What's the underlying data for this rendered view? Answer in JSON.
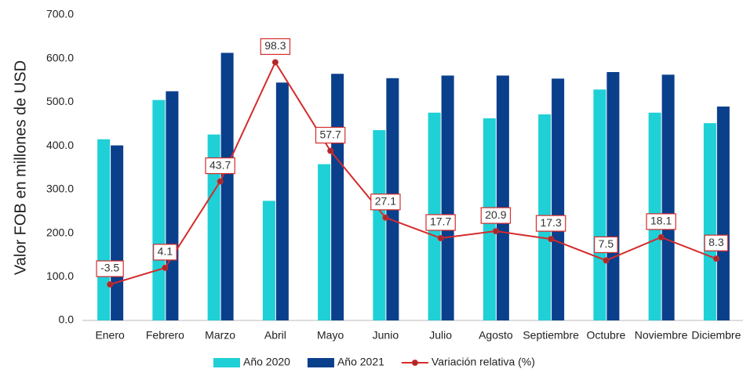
{
  "chart_data": {
    "type": "bar_line",
    "y_axis_label": "Valor FOB en millones de USD",
    "categories": [
      "Enero",
      "Febrero",
      "Marzo",
      "Abril",
      "Mayo",
      "Junio",
      "Julio",
      "Agosto",
      "Septiembre",
      "Octubre",
      "Noviembre",
      "Diciembre"
    ],
    "series": [
      {
        "name": "Año 2020",
        "color": "#1fd0d6",
        "type": "bar",
        "values": [
          415,
          505,
          426,
          274,
          358,
          436,
          476,
          463,
          472,
          529,
          476,
          452
        ]
      },
      {
        "name": "Año 2021",
        "color": "#0a3f8c",
        "type": "bar",
        "values": [
          401,
          525,
          613,
          545,
          565,
          555,
          561,
          561,
          554,
          569,
          563,
          490
        ]
      },
      {
        "name": "Variación relativa (%)",
        "color": "#d62b2b",
        "type": "line",
        "axis": "y2",
        "values": [
          -3.5,
          4.1,
          43.7,
          98.3,
          57.7,
          27.1,
          17.7,
          20.9,
          17.3,
          7.5,
          18.1,
          8.3
        ]
      }
    ],
    "ylim": [
      0,
      700
    ],
    "yticks": [
      {
        "value": 0,
        "label": "0.0"
      },
      {
        "value": 100,
        "label": "100.0"
      },
      {
        "value": 200,
        "label": "200.0"
      },
      {
        "value": 300,
        "label": "300.0"
      },
      {
        "value": 400,
        "label": "400.0"
      },
      {
        "value": 500,
        "label": "500.0"
      },
      {
        "value": 600,
        "label": "600.0"
      },
      {
        "value": 700,
        "label": "700.0"
      }
    ],
    "y2lim": [
      -20,
      120
    ],
    "legend": "bottom"
  }
}
